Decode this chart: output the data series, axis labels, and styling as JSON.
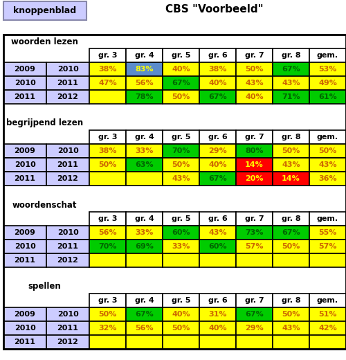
{
  "title": "CBS \"Voorbeeld\"",
  "button_label": "knoppenblad",
  "col_headers": [
    "gr. 3",
    "gr. 4",
    "gr. 5",
    "gr. 6",
    "gr. 7",
    "gr. 8",
    "gem."
  ],
  "sections": [
    {
      "name": "woorden lezen",
      "rows": [
        {
          "year1": "2009",
          "year2": "2010",
          "values": [
            "38%",
            "83%",
            "40%",
            "38%",
            "50%",
            "67%",
            "53%"
          ],
          "colors": [
            "yellow",
            "blue",
            "yellow",
            "yellow",
            "yellow",
            "green",
            "yellow"
          ]
        },
        {
          "year1": "2010",
          "year2": "2011",
          "values": [
            "47%",
            "56%",
            "67%",
            "40%",
            "43%",
            "43%",
            "49%"
          ],
          "colors": [
            "yellow",
            "yellow",
            "green",
            "yellow",
            "yellow",
            "yellow",
            "yellow"
          ]
        },
        {
          "year1": "2011",
          "year2": "2012",
          "values": [
            "",
            "78%",
            "50%",
            "67%",
            "40%",
            "71%",
            "61%"
          ],
          "colors": [
            "yellow",
            "green",
            "yellow",
            "green",
            "yellow",
            "green",
            "green"
          ]
        }
      ]
    },
    {
      "name": "begrijpend lezen",
      "rows": [
        {
          "year1": "2009",
          "year2": "2010",
          "values": [
            "38%",
            "33%",
            "70%",
            "29%",
            "80%",
            "50%",
            "50%"
          ],
          "colors": [
            "yellow",
            "yellow",
            "green",
            "yellow",
            "green",
            "yellow",
            "yellow"
          ]
        },
        {
          "year1": "2010",
          "year2": "2011",
          "values": [
            "50%",
            "63%",
            "50%",
            "40%",
            "14%",
            "43%",
            "43%"
          ],
          "colors": [
            "yellow",
            "green",
            "yellow",
            "yellow",
            "red",
            "yellow",
            "yellow"
          ]
        },
        {
          "year1": "2011",
          "year2": "2012",
          "values": [
            "",
            "",
            "43%",
            "67%",
            "20%",
            "14%",
            "36%"
          ],
          "colors": [
            "yellow",
            "yellow",
            "yellow",
            "green",
            "red",
            "red",
            "yellow"
          ]
        }
      ]
    },
    {
      "name": "woordenschat",
      "rows": [
        {
          "year1": "2009",
          "year2": "2010",
          "values": [
            "56%",
            "33%",
            "60%",
            "43%",
            "73%",
            "67%",
            "55%"
          ],
          "colors": [
            "yellow",
            "yellow",
            "green",
            "yellow",
            "green",
            "green",
            "yellow"
          ]
        },
        {
          "year1": "2010",
          "year2": "2011",
          "values": [
            "70%",
            "69%",
            "33%",
            "60%",
            "57%",
            "50%",
            "57%"
          ],
          "colors": [
            "green",
            "green",
            "yellow",
            "green",
            "yellow",
            "yellow",
            "yellow"
          ]
        },
        {
          "year1": "2011",
          "year2": "2012",
          "values": [
            "",
            "",
            "",
            "",
            "",
            "",
            ""
          ],
          "colors": [
            "yellow",
            "yellow",
            "yellow",
            "yellow",
            "yellow",
            "yellow",
            "yellow"
          ]
        }
      ]
    },
    {
      "name": "spellen",
      "rows": [
        {
          "year1": "2009",
          "year2": "2010",
          "values": [
            "50%",
            "67%",
            "40%",
            "31%",
            "67%",
            "50%",
            "51%"
          ],
          "colors": [
            "yellow",
            "green",
            "yellow",
            "yellow",
            "green",
            "yellow",
            "yellow"
          ]
        },
        {
          "year1": "2010",
          "year2": "2011",
          "values": [
            "32%",
            "56%",
            "50%",
            "40%",
            "29%",
            "43%",
            "42%"
          ],
          "colors": [
            "yellow",
            "yellow",
            "yellow",
            "yellow",
            "yellow",
            "yellow",
            "yellow"
          ]
        },
        {
          "year1": "2011",
          "year2": "2012",
          "values": [
            "",
            "",
            "",
            "",
            "",
            "",
            ""
          ],
          "colors": [
            "yellow",
            "yellow",
            "yellow",
            "yellow",
            "yellow",
            "yellow",
            "yellow"
          ]
        }
      ]
    }
  ],
  "color_map": {
    "yellow": "#FFFF00",
    "green": "#00CC00",
    "blue": "#5B8CCC",
    "red": "#FF0000"
  },
  "text_color_map": {
    "yellow": "#CC6600",
    "green": "#006600",
    "blue": "#FFFF00",
    "red": "#FFFF00"
  },
  "header_bg": "#CCCCFF",
  "outer_bg": "#FFFFFF",
  "button_bg": "#CCCCFF",
  "button_border": "#8888AA"
}
